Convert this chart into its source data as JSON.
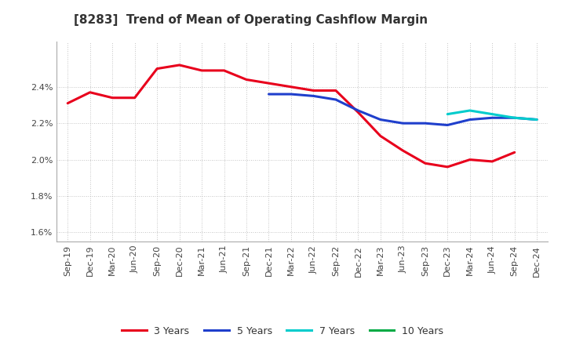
{
  "title": "[8283]  Trend of Mean of Operating Cashflow Margin",
  "background_color": "#ffffff",
  "plot_background": "#ffffff",
  "grid_color": "#aaaaaa",
  "x_labels": [
    "Sep-19",
    "Dec-19",
    "Mar-20",
    "Jun-20",
    "Sep-20",
    "Dec-20",
    "Mar-21",
    "Jun-21",
    "Sep-21",
    "Dec-21",
    "Mar-22",
    "Jun-22",
    "Sep-22",
    "Dec-22",
    "Mar-23",
    "Jun-23",
    "Sep-23",
    "Dec-23",
    "Mar-24",
    "Jun-24",
    "Sep-24",
    "Dec-24"
  ],
  "series_3y": [
    2.31,
    2.37,
    2.34,
    2.34,
    2.5,
    2.52,
    2.49,
    2.49,
    2.44,
    2.42,
    2.4,
    2.38,
    2.38,
    2.26,
    2.13,
    2.05,
    1.98,
    1.96,
    2.0,
    1.99,
    2.04,
    null
  ],
  "series_5y": [
    null,
    null,
    null,
    null,
    null,
    null,
    null,
    null,
    null,
    2.36,
    2.36,
    2.35,
    2.33,
    2.27,
    2.22,
    2.2,
    2.2,
    2.19,
    2.22,
    2.23,
    2.23,
    2.22
  ],
  "series_7y": [
    null,
    null,
    null,
    null,
    null,
    null,
    null,
    null,
    null,
    null,
    null,
    null,
    null,
    null,
    null,
    null,
    null,
    2.25,
    2.27,
    2.25,
    2.23,
    2.22
  ],
  "series_10y": [
    null,
    null,
    null,
    null,
    null,
    null,
    null,
    null,
    null,
    null,
    null,
    null,
    null,
    null,
    null,
    null,
    null,
    null,
    null,
    null,
    null,
    null
  ],
  "color_3y": "#e8001c",
  "color_5y": "#1f3fcc",
  "color_7y": "#00cccc",
  "color_10y": "#00aa44",
  "ylim": [
    1.55,
    2.65
  ],
  "yticks": [
    1.6,
    1.8,
    2.0,
    2.2,
    2.4
  ],
  "legend_labels": [
    "3 Years",
    "5 Years",
    "7 Years",
    "10 Years"
  ],
  "linewidth": 2.2,
  "title_fontsize": 11,
  "tick_fontsize": 8
}
